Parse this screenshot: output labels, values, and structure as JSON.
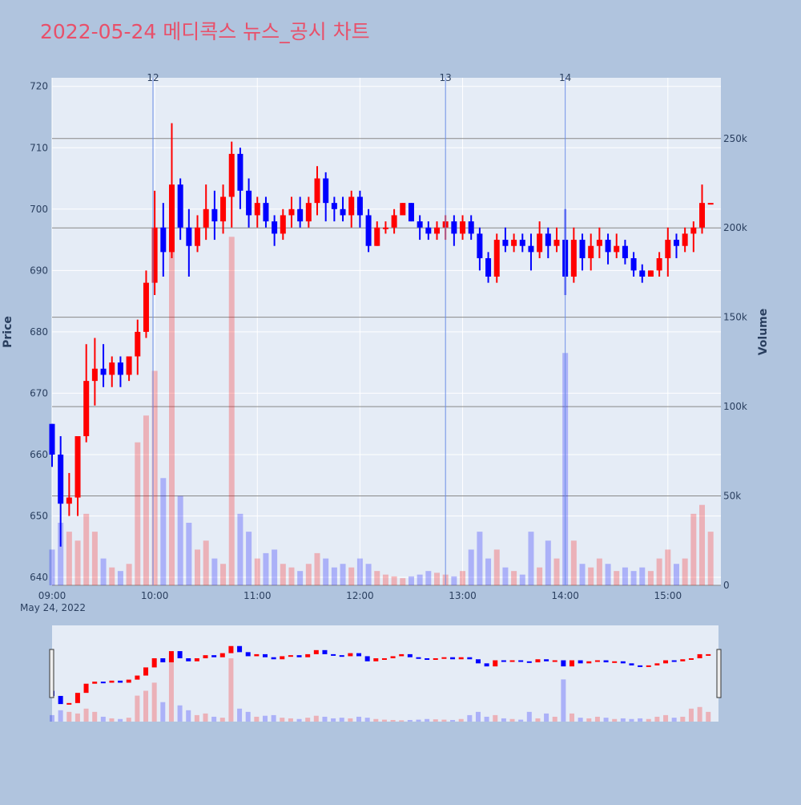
{
  "chart_data": {
    "type": "candlestick",
    "title": "2022-05-24 메디콕스 뉴스_공시 차트",
    "x_date_label": "May 24, 2022",
    "y_label": "Price",
    "y2_label": "Volume",
    "x": [
      "09:00",
      "09:05",
      "09:10",
      "09:15",
      "09:20",
      "09:25",
      "09:30",
      "09:35",
      "09:40",
      "09:45",
      "09:50",
      "09:55",
      "10:00",
      "10:05",
      "10:10",
      "10:15",
      "10:20",
      "10:25",
      "10:30",
      "10:35",
      "10:40",
      "10:45",
      "10:50",
      "10:55",
      "11:00",
      "11:05",
      "11:10",
      "11:15",
      "11:20",
      "11:25",
      "11:30",
      "11:35",
      "11:40",
      "11:45",
      "11:50",
      "11:55",
      "12:00",
      "12:05",
      "12:10",
      "12:15",
      "12:20",
      "12:25",
      "12:30",
      "12:35",
      "12:40",
      "12:45",
      "12:50",
      "12:55",
      "13:00",
      "13:05",
      "13:10",
      "13:15",
      "13:20",
      "13:25",
      "13:30",
      "13:35",
      "13:40",
      "13:45",
      "13:50",
      "13:55",
      "14:00",
      "14:05",
      "14:10",
      "14:15",
      "14:20",
      "14:25",
      "14:30",
      "14:35",
      "14:40",
      "14:45",
      "14:50",
      "14:55",
      "15:00",
      "15:05",
      "15:10",
      "15:15",
      "15:20",
      "15:25"
    ],
    "open": [
      665,
      660,
      652,
      653,
      663,
      672,
      674,
      673,
      675,
      673,
      676,
      680,
      688,
      697,
      693,
      704,
      697,
      694,
      697,
      700,
      698,
      702,
      709,
      703,
      699,
      701,
      698,
      696,
      699,
      700,
      698,
      701,
      705,
      701,
      700,
      699,
      702,
      699,
      694,
      697,
      697,
      699,
      701,
      698,
      697,
      696,
      697,
      698,
      696,
      698,
      696,
      692,
      689,
      695,
      694,
      695,
      694,
      693,
      696,
      694,
      695,
      689,
      695,
      692,
      694,
      695,
      693,
      694,
      692,
      690,
      689,
      690,
      692,
      695,
      694,
      696,
      697,
      701
    ],
    "high": [
      665,
      663,
      657,
      663,
      678,
      679,
      678,
      676,
      676,
      676,
      682,
      690,
      703,
      701,
      714,
      705,
      700,
      699,
      704,
      703,
      704,
      711,
      710,
      705,
      702,
      702,
      699,
      700,
      702,
      702,
      702,
      707,
      706,
      702,
      702,
      703,
      703,
      700,
      698,
      698,
      700,
      701,
      701,
      699,
      698,
      698,
      699,
      699,
      699,
      699,
      697,
      693,
      696,
      697,
      696,
      696,
      696,
      698,
      697,
      697,
      700,
      697,
      696,
      696,
      697,
      696,
      696,
      695,
      693,
      691,
      690,
      693,
      697,
      696,
      697,
      698,
      704,
      701
    ],
    "low": [
      658,
      645,
      650,
      650,
      662,
      668,
      671,
      671,
      671,
      672,
      673,
      679,
      686,
      689,
      692,
      695,
      689,
      693,
      695,
      695,
      696,
      697,
      700,
      697,
      697,
      697,
      694,
      695,
      697,
      697,
      697,
      699,
      698,
      698,
      698,
      697,
      697,
      693,
      694,
      696,
      696,
      699,
      698,
      695,
      695,
      695,
      695,
      694,
      695,
      695,
      690,
      688,
      688,
      693,
      693,
      693,
      690,
      692,
      692,
      693,
      686,
      688,
      690,
      690,
      692,
      691,
      692,
      691,
      689,
      688,
      689,
      689,
      689,
      692,
      693,
      693,
      696,
      701
    ],
    "close": [
      660,
      652,
      653,
      663,
      672,
      674,
      673,
      675,
      673,
      676,
      680,
      688,
      697,
      693,
      704,
      697,
      694,
      697,
      700,
      698,
      702,
      709,
      703,
      699,
      701,
      698,
      696,
      699,
      700,
      698,
      701,
      705,
      701,
      700,
      699,
      702,
      699,
      694,
      697,
      697,
      699,
      701,
      698,
      697,
      696,
      697,
      698,
      696,
      698,
      696,
      692,
      689,
      695,
      694,
      695,
      694,
      693,
      696,
      694,
      695,
      689,
      695,
      692,
      694,
      695,
      693,
      694,
      692,
      690,
      689,
      690,
      692,
      695,
      694,
      696,
      697,
      701,
      701
    ],
    "volume": [
      20000,
      35000,
      30000,
      25000,
      40000,
      30000,
      15000,
      10000,
      8000,
      12000,
      80000,
      95000,
      120000,
      60000,
      195000,
      50000,
      35000,
      20000,
      25000,
      15000,
      12000,
      195000,
      40000,
      30000,
      15000,
      18000,
      20000,
      12000,
      10000,
      8000,
      12000,
      18000,
      15000,
      10000,
      12000,
      10000,
      15000,
      12000,
      8000,
      6000,
      5000,
      4000,
      5000,
      6000,
      8000,
      7000,
      6000,
      5000,
      8000,
      20000,
      30000,
      15000,
      20000,
      10000,
      8000,
      6000,
      30000,
      10000,
      25000,
      15000,
      130000,
      25000,
      12000,
      10000,
      15000,
      12000,
      8000,
      10000,
      8000,
      10000,
      8000,
      15000,
      20000,
      12000,
      15000,
      40000,
      45000,
      30000
    ],
    "up_color": "#ff0000",
    "down_color": "#0000ff",
    "xlim": [
      "09:00",
      "15:31"
    ],
    "xticks": [
      "09:00",
      "10:00",
      "11:00",
      "12:00",
      "13:00",
      "14:00",
      "15:00"
    ],
    "ylim": [
      638.7,
      721.4
    ],
    "yticks": [
      640,
      650,
      660,
      670,
      680,
      690,
      700,
      710,
      720
    ],
    "y2lim": [
      0,
      284000
    ],
    "y2ticks": [
      0,
      {
        "value": 50000,
        "label": "50k"
      },
      {
        "value": 100000,
        "label": "100k"
      },
      {
        "value": 150000,
        "label": "150k"
      },
      {
        "value": 200000,
        "label": "200k"
      },
      {
        "value": 250000,
        "label": "250k"
      }
    ],
    "annotations": [
      {
        "x": "09:59",
        "label": "12"
      },
      {
        "x": "12:50",
        "label": "13"
      },
      {
        "x": "14:00",
        "label": "14"
      }
    ],
    "grid": true
  }
}
